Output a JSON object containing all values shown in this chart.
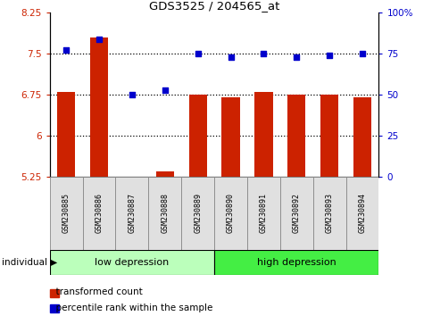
{
  "title": "GDS3525 / 204565_at",
  "samples": [
    "GSM230885",
    "GSM230886",
    "GSM230887",
    "GSM230888",
    "GSM230889",
    "GSM230890",
    "GSM230891",
    "GSM230892",
    "GSM230893",
    "GSM230894"
  ],
  "transformed_count": [
    6.8,
    7.8,
    5.26,
    5.35,
    6.75,
    6.7,
    6.8,
    6.75,
    6.75,
    6.7
  ],
  "percentile_rank": [
    77,
    84,
    50,
    53,
    75,
    73,
    75,
    73,
    74,
    75
  ],
  "ylim_left": [
    5.25,
    8.25
  ],
  "ylim_right": [
    0,
    100
  ],
  "yticks_left": [
    5.25,
    6.0,
    6.75,
    7.5,
    8.25
  ],
  "yticks_right": [
    0,
    25,
    50,
    75,
    100
  ],
  "ytick_labels_left": [
    "5.25",
    "6",
    "6.75",
    "7.5",
    "8.25"
  ],
  "ytick_labels_right": [
    "0",
    "25",
    "50",
    "75",
    "100%"
  ],
  "bar_color": "#cc2200",
  "dot_color": "#0000cc",
  "bar_bottom": 5.25,
  "group1_label": "low depression",
  "group2_label": "high depression",
  "group1_color": "#bbffbb",
  "group2_color": "#44ee44",
  "legend_bar_label": "transformed count",
  "legend_dot_label": "percentile rank within the sample",
  "individual_label": "individual",
  "background_color": "#ffffff",
  "hgrid_lines": [
    6.0,
    6.75,
    7.5
  ],
  "bar_width": 0.55,
  "n_samples": 10,
  "n_group1": 5,
  "n_group2": 5
}
